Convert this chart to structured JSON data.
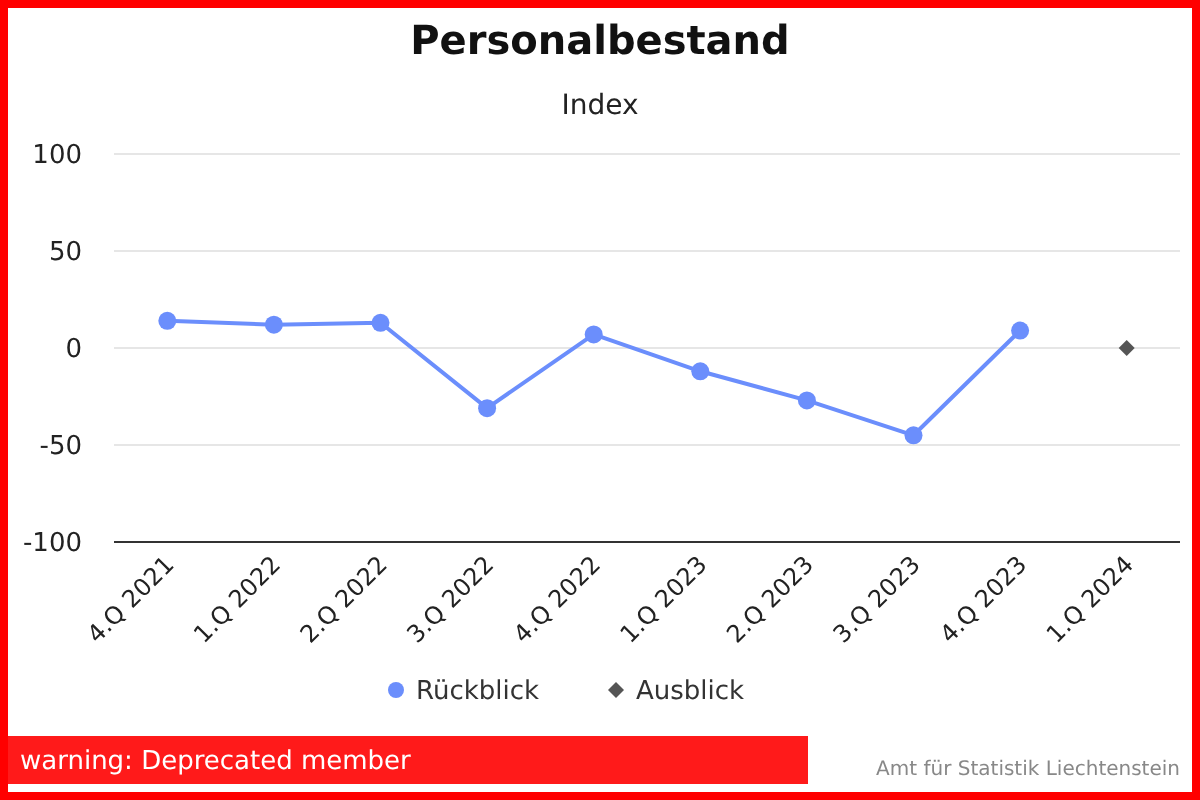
{
  "chart_data": {
    "type": "line",
    "title": "Personalbestand",
    "subtitle": "Index",
    "categories": [
      "4.Q 2021",
      "1.Q 2022",
      "2.Q 2022",
      "3.Q 2022",
      "4.Q 2022",
      "1.Q 2023",
      "2.Q 2023",
      "3.Q 2023",
      "4.Q 2023",
      "1.Q 2024"
    ],
    "series": [
      {
        "name": "Rückblick",
        "color": "#6b8efc",
        "marker": "circle",
        "values": [
          14,
          12,
          13,
          -31,
          7,
          -12,
          -27,
          -45,
          9,
          null
        ]
      },
      {
        "name": "Ausblick",
        "type": "scatter",
        "color": "#555555",
        "marker": "diamond",
        "values": [
          null,
          null,
          null,
          null,
          null,
          null,
          null,
          null,
          null,
          0
        ]
      }
    ],
    "ylim": [
      -100,
      100
    ],
    "yticks": [
      -100,
      -50,
      0,
      50,
      100
    ],
    "grid": "y",
    "legend": "bottom",
    "annotations": [
      "warning: Deprecated member",
      "Amt für Statistik Liechtenstein"
    ]
  }
}
